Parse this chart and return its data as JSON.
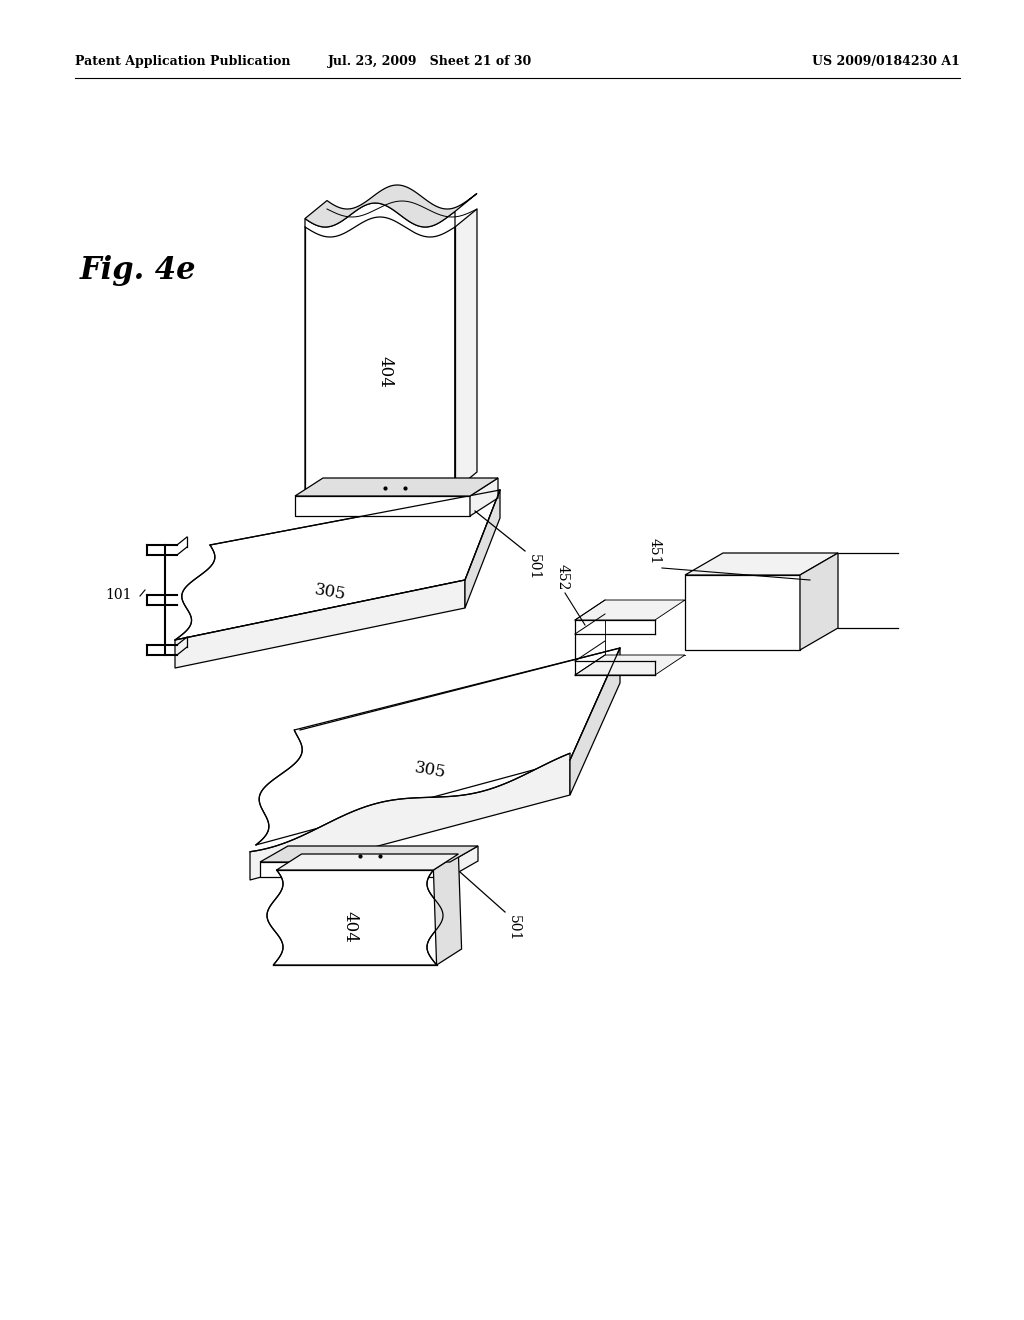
{
  "page_title_left": "Patent Application Publication",
  "page_title_mid": "Jul. 23, 2009   Sheet 21 of 30",
  "page_title_right": "US 2009/0184230 A1",
  "fig_label": "Fig. 4e",
  "background_color": "#ffffff",
  "line_color": "#000000",
  "fill_white": "#ffffff",
  "fill_light": "#f2f2f2",
  "fill_mid": "#e0e0e0",
  "fill_dark": "#cccccc"
}
